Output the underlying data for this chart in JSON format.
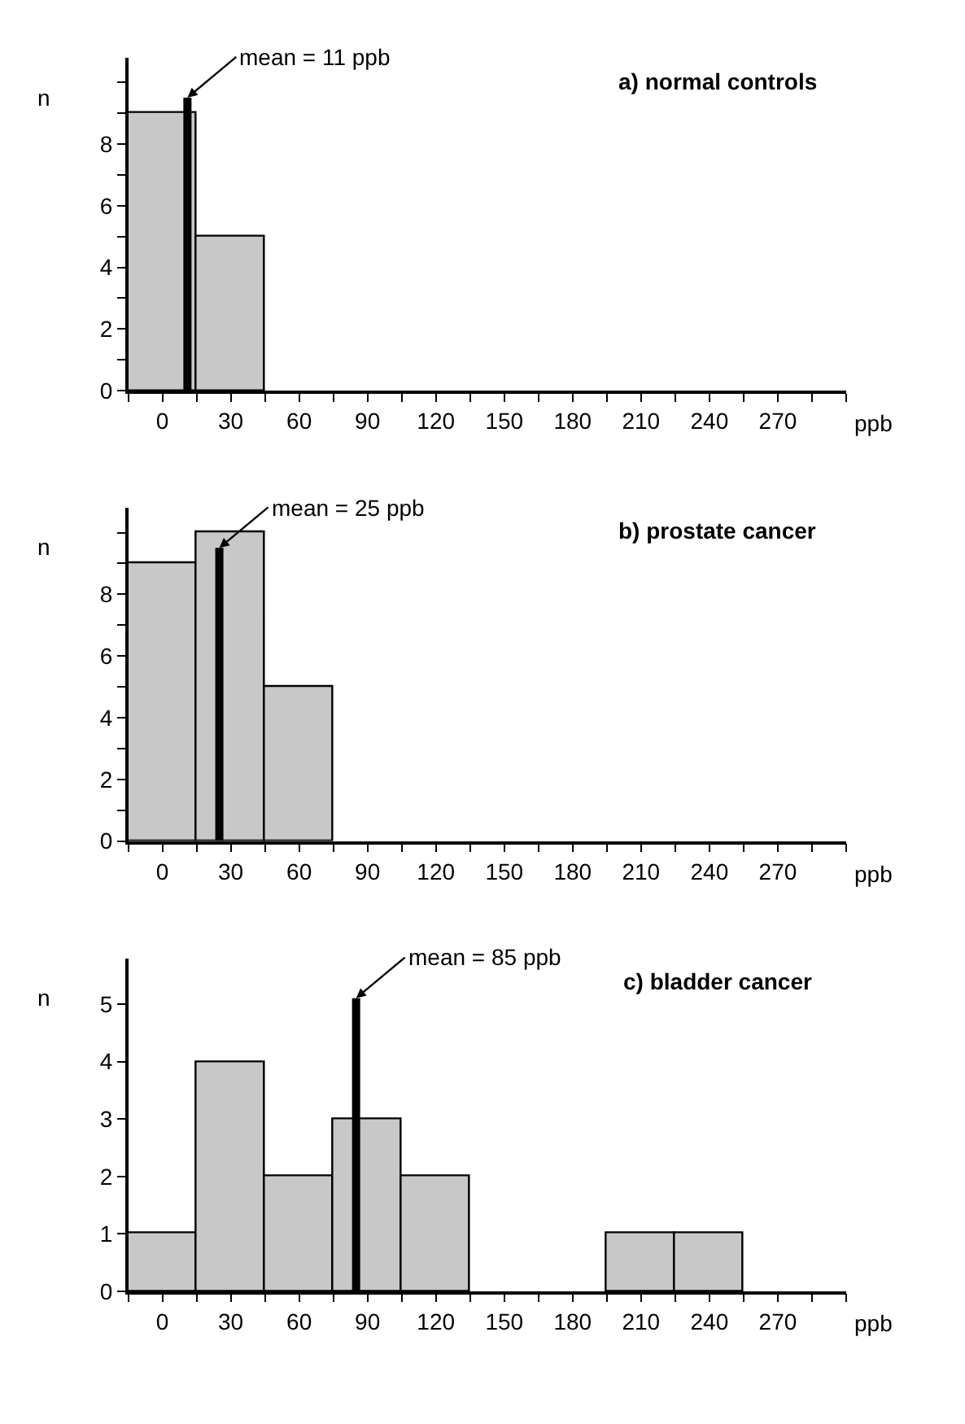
{
  "chart_data": [
    {
      "type": "histogram",
      "title": "a) normal controls",
      "xlabel": "ppb",
      "ylabel": "n",
      "bins": [
        -15,
        15,
        45,
        75,
        105,
        135,
        165,
        195,
        225,
        255,
        285
      ],
      "values": [
        9,
        5,
        0,
        0,
        0,
        0,
        0,
        0,
        0,
        0
      ],
      "color": "#c8c8c8",
      "xlim": [
        -15,
        300
      ],
      "xticks": [
        {
          "value": -15,
          "label": null
        },
        0,
        {
          "value": 15,
          "label": null
        },
        30,
        {
          "value": 45,
          "label": null
        },
        60,
        {
          "value": 75,
          "label": null
        },
        90,
        {
          "value": 105,
          "label": null
        },
        120,
        {
          "value": 135,
          "label": null
        },
        150,
        {
          "value": 165,
          "label": null
        },
        180,
        {
          "value": 195,
          "label": null
        },
        210,
        {
          "value": 225,
          "label": null
        },
        240,
        {
          "value": 255,
          "label": null
        },
        270,
        {
          "value": 285,
          "label": null
        },
        {
          "value": 300,
          "label": null
        }
      ],
      "ylim": [
        0,
        10.8
      ],
      "yticks": [
        0,
        {
          "value": 1,
          "label": null
        },
        2,
        {
          "value": 3,
          "label": null
        },
        4,
        {
          "value": 5,
          "label": null
        },
        6,
        {
          "value": 7,
          "label": null
        },
        8,
        {
          "value": 9,
          "label": null
        },
        {
          "value": 10,
          "label": null
        }
      ],
      "ref_lines": [
        {
          "axis": "x",
          "value": 11,
          "label": "mean = 11 ppb",
          "color": "#000000"
        }
      ]
    },
    {
      "type": "histogram",
      "title": "b) prostate cancer",
      "xlabel": "ppb",
      "ylabel": "n",
      "bins": [
        -15,
        15,
        45,
        75,
        105,
        135,
        165,
        195,
        225,
        255,
        285
      ],
      "values": [
        9,
        10,
        5,
        0,
        0,
        0,
        0,
        0,
        0,
        0
      ],
      "color": "#c8c8c8",
      "xlim": [
        -15,
        300
      ],
      "xticks": [
        {
          "value": -15,
          "label": null
        },
        0,
        {
          "value": 15,
          "label": null
        },
        30,
        {
          "value": 45,
          "label": null
        },
        60,
        {
          "value": 75,
          "label": null
        },
        90,
        {
          "value": 105,
          "label": null
        },
        120,
        {
          "value": 135,
          "label": null
        },
        150,
        {
          "value": 165,
          "label": null
        },
        180,
        {
          "value": 195,
          "label": null
        },
        210,
        {
          "value": 225,
          "label": null
        },
        240,
        {
          "value": 255,
          "label": null
        },
        270,
        {
          "value": 285,
          "label": null
        },
        {
          "value": 300,
          "label": null
        }
      ],
      "ylim": [
        0,
        10.8
      ],
      "yticks": [
        0,
        {
          "value": 1,
          "label": null
        },
        2,
        {
          "value": 3,
          "label": null
        },
        4,
        {
          "value": 5,
          "label": null
        },
        6,
        {
          "value": 7,
          "label": null
        },
        8,
        {
          "value": 9,
          "label": null
        },
        {
          "value": 10,
          "label": null
        }
      ],
      "ref_lines": [
        {
          "axis": "x",
          "value": 25,
          "label": "mean = 25 ppb",
          "color": "#000000"
        }
      ]
    },
    {
      "type": "histogram",
      "title": "c) bladder cancer",
      "xlabel": "ppb",
      "ylabel": "n",
      "bins": [
        -15,
        15,
        45,
        75,
        105,
        135,
        165,
        195,
        225,
        255,
        285
      ],
      "values": [
        1,
        4,
        2,
        3,
        2,
        0,
        0,
        1,
        1,
        0
      ],
      "color": "#c8c8c8",
      "xlim": [
        -15,
        300
      ],
      "xticks": [
        {
          "value": -15,
          "label": null
        },
        0,
        {
          "value": 15,
          "label": null
        },
        30,
        {
          "value": 45,
          "label": null
        },
        60,
        {
          "value": 75,
          "label": null
        },
        90,
        {
          "value": 105,
          "label": null
        },
        120,
        {
          "value": 135,
          "label": null
        },
        150,
        {
          "value": 165,
          "label": null
        },
        180,
        {
          "value": 195,
          "label": null
        },
        210,
        {
          "value": 225,
          "label": null
        },
        240,
        {
          "value": 255,
          "label": null
        },
        270,
        {
          "value": 285,
          "label": null
        },
        {
          "value": 300,
          "label": null
        }
      ],
      "ylim": [
        0,
        5.8
      ],
      "yticks": [
        0,
        1,
        2,
        3,
        4,
        5
      ],
      "ref_lines": [
        {
          "axis": "x",
          "value": 85,
          "label": "mean = 85 ppb",
          "color": "#000000"
        }
      ]
    }
  ]
}
